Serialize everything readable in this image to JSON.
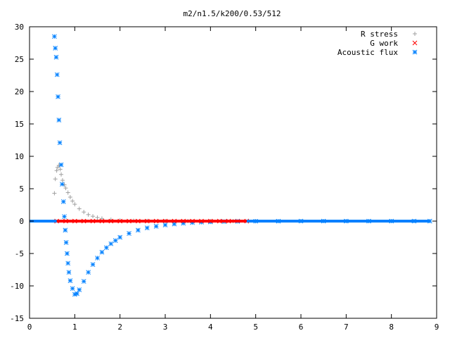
{
  "chart_data": {
    "type": "scatter",
    "title": "m2/n1.5/k200/0.53/512",
    "xlabel": "",
    "ylabel": "",
    "xlim": [
      0,
      9
    ],
    "ylim": [
      -15,
      30
    ],
    "x_ticks": [
      0,
      1,
      2,
      3,
      4,
      5,
      6,
      7,
      8,
      9
    ],
    "y_ticks": [
      -15,
      -10,
      -5,
      0,
      5,
      10,
      15,
      20,
      25,
      30
    ],
    "grid": false,
    "legend_position": "top-right",
    "series": [
      {
        "name": "R stress",
        "marker": "plus",
        "color": "#a0a0a0",
        "x": [
          0.55,
          0.57,
          0.6,
          0.62,
          0.65,
          0.68,
          0.7,
          0.73,
          0.77,
          0.8,
          0.85,
          0.9,
          0.95,
          1.0,
          1.1,
          1.2,
          1.3,
          1.4,
          1.5,
          1.6,
          1.8,
          2.0,
          2.3,
          2.6,
          3.0,
          3.5,
          4.0,
          4.5,
          5.0
        ],
        "y": [
          4.3,
          6.5,
          7.8,
          8.3,
          8.6,
          8.0,
          7.2,
          6.3,
          5.6,
          5.1,
          4.4,
          3.7,
          3.1,
          2.6,
          1.9,
          1.4,
          1.0,
          0.75,
          0.55,
          0.4,
          0.22,
          0.12,
          0.06,
          0.03,
          0.01,
          0.0,
          0.0,
          0.0,
          0.0
        ]
      },
      {
        "name": "G work",
        "marker": "cross",
        "color": "#ff0000",
        "x": [
          0.6,
          0.8,
          1.0,
          1.2,
          1.4,
          1.6,
          1.8,
          2.0,
          2.2,
          2.4,
          2.6,
          2.8,
          3.0,
          3.2,
          3.4,
          3.6,
          3.8,
          4.0,
          4.2,
          4.4,
          4.6,
          4.8
        ],
        "y": [
          0,
          0,
          0,
          0,
          0,
          0,
          0,
          0,
          0,
          0,
          0,
          0,
          0,
          0,
          0,
          0,
          0,
          0,
          0,
          0,
          0,
          0
        ]
      },
      {
        "name": "Acoustic flux",
        "marker": "star",
        "color": "#0080ff",
        "x": [
          0.55,
          0.57,
          0.59,
          0.61,
          0.63,
          0.65,
          0.67,
          0.7,
          0.72,
          0.75,
          0.77,
          0.79,
          0.81,
          0.83,
          0.85,
          0.87,
          0.9,
          0.95,
          1.0,
          1.05,
          1.1,
          1.2,
          1.3,
          1.4,
          1.5,
          1.6,
          1.7,
          1.8,
          1.9,
          2.0,
          2.2,
          2.4,
          2.6,
          2.8,
          3.0,
          3.2,
          3.4,
          3.6,
          3.8,
          4.0,
          4.3,
          4.6,
          5.0,
          5.5,
          6.0,
          6.5,
          7.0,
          7.5,
          8.0,
          8.5,
          8.85
        ],
        "y": [
          28.5,
          26.7,
          25.3,
          22.6,
          19.2,
          15.6,
          12.1,
          8.7,
          5.7,
          3.0,
          0.7,
          -1.4,
          -3.3,
          -5.0,
          -6.5,
          -7.9,
          -9.2,
          -10.4,
          -11.3,
          -11.2,
          -10.6,
          -9.3,
          -7.9,
          -6.7,
          -5.7,
          -4.8,
          -4.1,
          -3.5,
          -3.0,
          -2.5,
          -1.9,
          -1.4,
          -1.05,
          -0.8,
          -0.6,
          -0.45,
          -0.33,
          -0.24,
          -0.17,
          -0.12,
          -0.07,
          -0.04,
          -0.02,
          -0.01,
          0,
          0,
          0,
          0,
          0,
          0,
          0
        ]
      }
    ]
  }
}
